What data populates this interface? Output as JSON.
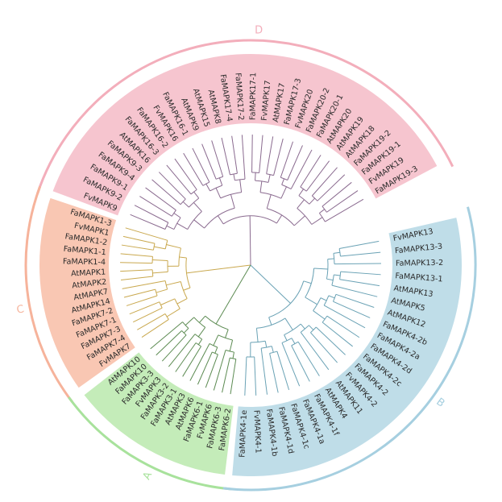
{
  "clades": [
    {
      "id": "D",
      "label": "D",
      "color": "#f6c5cf",
      "ring": "#f3aebb",
      "branch": "#8a6a8f",
      "leaves": [
        "FvMAPK9",
        "FaMAPK9-2",
        "FaMAPK9-1",
        "FaMAPK9-4",
        "FaMAPK9-3",
        "AtMAPK16",
        "FaMAPK16-3",
        "FaMAPK16-2",
        "FvMAPK16",
        "FaMAPK16-1",
        "AtMAPK9",
        "AtMAPK15",
        "AtMAPK8",
        "FaMAPK17-4",
        "FaMAPK17-2",
        "FaMAPK17-1",
        "FvMAPK17",
        "AtMAPK17",
        "FaMAPK17-3",
        "FvMAPK20",
        "FaMAPK20-2",
        "FaMAPK20-1",
        "AtMAPK20",
        "AtMAPK19",
        "AtMAPK18",
        "FaMAPK19-2",
        "FaMAPK19-1",
        "FvMAPK19",
        "FaMAPK19-3"
      ]
    },
    {
      "id": "C",
      "label": "C",
      "color": "#f9c7b3",
      "ring": "#f6b39b",
      "branch": "#c9a84e",
      "leaves": [
        "FvMAPK7",
        "FaMAPK7-4",
        "FaMAPK7-3",
        "FaMAPK7-1",
        "FaMAPK7-2",
        "AtMAPK14",
        "AtMAPK7",
        "AtMAPK2",
        "AtMAPK1",
        "FaMAPK1-4",
        "FaMAPK1-1",
        "FaMAPK1-2",
        "FvMAPK1",
        "FaMAPK1-3"
      ]
    },
    {
      "id": "A",
      "label": "A",
      "color": "#c4ecb9",
      "ring": "#a8e29c",
      "branch": "#5c8b52",
      "leaves": [
        "FaMAPK6-2",
        "FaMAPK6-3",
        "FvMAPK6",
        "FaMAPK6-1",
        "AtMAPK6",
        "AtMAPK3",
        "FaMAPK3-1",
        "FaMAPK3-2",
        "FvMAPK3",
        "FaMAPK3-3",
        "FaMAPK10",
        "AtMAPK10"
      ]
    },
    {
      "id": "B",
      "label": "B",
      "color": "#bfdde8",
      "ring": "#a6cfe0",
      "branch": "#6aa2b5",
      "leaves": [
        "FvMAPK13",
        "FaMAPK13-3",
        "FaMAPK13-2",
        "FaMAPK13-1",
        "AtMAPK13",
        "AtMAPK5",
        "AtMAPK12",
        "FaMAPK4-2b",
        "FaMAPK4-2a",
        "FaMAPK4-2d",
        "FaMAPK4-2c",
        "FaMAPK4-2",
        "FvMAPK4-2",
        "AtMAPK11",
        "AtMAPK4",
        "FaMAPK4-1f",
        "FaMAPK4-1a",
        "FaMAPK4-1c",
        "FaMAPK4-1d",
        "FaMAPK4-1b",
        "FvMAPK4-1",
        "FaMAPK4-1e"
      ]
    }
  ]
}
